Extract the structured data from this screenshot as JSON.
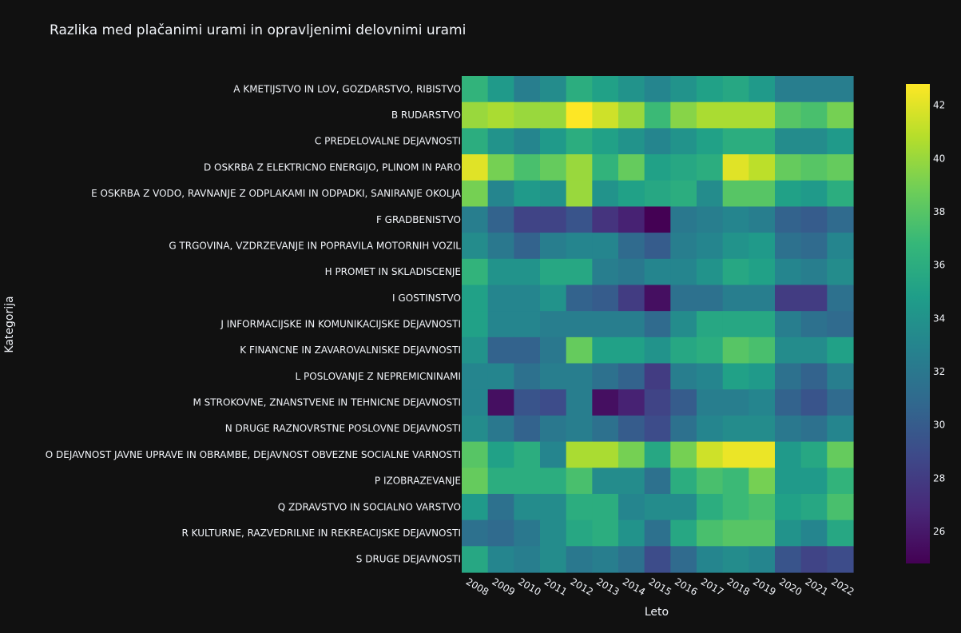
{
  "chart_data": {
    "type": "heatmap",
    "title": "Razlika med plačanimi urami in opravljenimi delovnimi urami",
    "xlabel": "Leto",
    "ylabel": "Kategorija",
    "colorscale": "viridis",
    "zmin": 24.8,
    "zmax": 42.8,
    "colorbar_ticks": [
      26,
      28,
      30,
      32,
      34,
      36,
      38,
      40,
      42
    ],
    "x": [
      "2008",
      "2009",
      "2010",
      "2011",
      "2012",
      "2013",
      "2014",
      "2015",
      "2016",
      "2017",
      "2018",
      "2019",
      "2020",
      "2021",
      "2022"
    ],
    "y": [
      "A KMETIJSTVO IN LOV, GOZDARSTVO, RIBISTVO",
      "B RUDARSTVO",
      "C PREDELOVALNE DEJAVNOSTI",
      "D OSKRBA Z ELEKTRICNO ENERGIJO, PLINOM IN PARO",
      "E OSKRBA Z VODO, RAVNANJE Z ODPLAKAMI IN ODPADKI, SANIRANJE OKOLJA",
      "F GRADBENISTVO",
      "G TRGOVINA, VZDRZEVANJE IN POPRAVILA MOTORNIH VOZIL",
      "H PROMET IN SKLADISCENJE",
      "I GOSTINSTVO",
      "J INFORMACIJSKE IN KOMUNIKACIJSKE DEJAVNOSTI",
      "K FINANCNE IN ZAVAROVALNISKE DEJAVNOSTI",
      "L POSLOVANJE Z NEPREMICNINAMI",
      "M STROKOVNE, ZNANSTVENE IN TEHNICNE DEJAVNOSTI",
      "N DRUGE RAZNOVRSTNE POSLOVNE DEJAVNOSTI",
      "O DEJAVNOST JAVNE UPRAVE IN OBRAMBE, DEJAVNOST OBVEZNE SOCIALNE VARNOSTI",
      "P IZOBRAZEVANJE",
      "Q ZDRAVSTVO IN SOCIALNO VARSTVO",
      "R KULTURNE, RAZVEDRILNE IN REKREACIJSKE DEJAVNOSTI",
      "S DRUGE DEJAVNOSTI"
    ],
    "z": [
      [
        36.5,
        34.5,
        32.5,
        33.5,
        36.0,
        35.0,
        34.0,
        33.0,
        34.0,
        35.0,
        35.5,
        34.5,
        32.5,
        32.5,
        32.5
      ],
      [
        40.0,
        40.5,
        40.0,
        40.0,
        42.8,
        41.5,
        40.0,
        37.0,
        39.5,
        40.5,
        40.5,
        40.5,
        38.0,
        37.5,
        39.0
      ],
      [
        36.0,
        34.0,
        33.0,
        34.5,
        36.0,
        35.0,
        34.0,
        33.0,
        34.0,
        35.0,
        36.0,
        36.0,
        33.5,
        33.5,
        34.5
      ],
      [
        42.0,
        39.0,
        37.5,
        38.5,
        40.0,
        36.5,
        38.5,
        35.0,
        35.5,
        36.0,
        42.0,
        41.0,
        38.5,
        38.0,
        38.5
      ],
      [
        39.0,
        33.0,
        34.5,
        34.0,
        40.0,
        34.0,
        35.0,
        35.5,
        36.0,
        33.5,
        38.0,
        38.0,
        35.0,
        34.5,
        36.0
      ],
      [
        32.5,
        30.5,
        28.5,
        28.5,
        29.5,
        27.5,
        26.5,
        24.8,
        32.0,
        32.5,
        33.0,
        32.5,
        30.5,
        30.0,
        31.0
      ],
      [
        33.5,
        32.0,
        30.5,
        32.5,
        33.0,
        33.0,
        31.0,
        30.0,
        32.5,
        33.0,
        34.0,
        34.5,
        31.5,
        31.0,
        33.0
      ],
      [
        36.5,
        34.0,
        34.0,
        35.5,
        35.5,
        32.5,
        32.0,
        33.0,
        33.0,
        34.0,
        35.5,
        35.0,
        33.0,
        32.5,
        33.5
      ],
      [
        35.0,
        33.0,
        33.0,
        34.0,
        30.5,
        30.0,
        28.0,
        25.5,
        31.5,
        31.5,
        32.5,
        32.5,
        28.0,
        28.0,
        31.5
      ],
      [
        35.0,
        33.0,
        33.0,
        32.5,
        32.5,
        32.5,
        32.5,
        31.0,
        33.5,
        35.5,
        35.5,
        35.5,
        32.5,
        31.5,
        31.0
      ],
      [
        34.0,
        30.5,
        30.5,
        32.0,
        38.5,
        35.0,
        35.0,
        34.0,
        35.5,
        36.0,
        38.0,
        37.5,
        33.5,
        33.5,
        35.0
      ],
      [
        33.0,
        33.0,
        31.5,
        32.5,
        32.5,
        31.5,
        30.5,
        28.0,
        32.5,
        33.0,
        35.0,
        34.5,
        31.5,
        30.5,
        32.5
      ],
      [
        33.0,
        25.5,
        29.5,
        29.0,
        32.5,
        25.5,
        26.5,
        28.5,
        30.0,
        32.5,
        32.5,
        33.0,
        30.5,
        29.5,
        31.0
      ],
      [
        33.5,
        32.0,
        30.5,
        32.0,
        32.5,
        31.5,
        30.0,
        29.0,
        31.5,
        33.0,
        33.5,
        33.5,
        32.0,
        31.5,
        33.0
      ],
      [
        38.0,
        35.0,
        36.0,
        33.0,
        40.5,
        40.5,
        39.0,
        35.5,
        39.0,
        41.5,
        42.3,
        42.3,
        34.5,
        35.5,
        38.5
      ],
      [
        38.5,
        36.0,
        36.0,
        36.0,
        37.5,
        33.5,
        33.5,
        31.5,
        36.0,
        37.5,
        37.0,
        39.0,
        34.5,
        34.5,
        36.5
      ],
      [
        34.5,
        31.5,
        33.5,
        33.5,
        36.0,
        36.0,
        33.0,
        33.5,
        33.5,
        36.0,
        37.0,
        37.5,
        35.0,
        35.5,
        37.5
      ],
      [
        31.5,
        31.0,
        32.0,
        33.5,
        35.5,
        36.0,
        34.0,
        31.5,
        35.5,
        37.5,
        38.0,
        38.0,
        34.0,
        33.0,
        35.5
      ],
      [
        35.5,
        33.0,
        32.5,
        33.5,
        32.0,
        32.5,
        31.5,
        29.0,
        31.0,
        33.0,
        33.5,
        33.0,
        29.5,
        28.5,
        29.0
      ]
    ]
  },
  "colors": {
    "background": "#111111",
    "text": "#f2f5fa"
  }
}
